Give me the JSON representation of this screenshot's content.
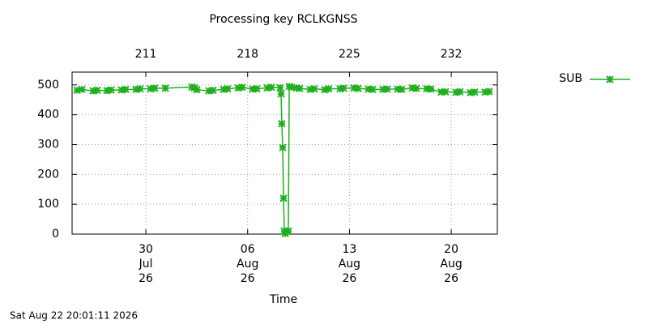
{
  "chart_data": {
    "type": "line",
    "title": "Processing key RCLKGNSS",
    "x_label": "Time",
    "footer": "Sat Aug 22 20:01:11 2026",
    "xlim": [
      205.93,
      235.17
    ],
    "ylim": [
      0,
      543
    ],
    "yticks": [
      0,
      100,
      200,
      300,
      400,
      500
    ],
    "xticks": [
      {
        "value": 211,
        "label": [
          "30",
          "Jul",
          "26"
        ]
      },
      {
        "value": 218,
        "label": [
          "06",
          "Aug",
          "26"
        ]
      },
      {
        "value": 225,
        "label": [
          "13",
          "Aug",
          "26"
        ]
      },
      {
        "value": 232,
        "label": [
          "20",
          "Aug",
          "26"
        ]
      }
    ],
    "x2ticks": [
      211,
      218,
      225,
      232
    ],
    "grid": true,
    "legend": "outside-right",
    "series": [
      {
        "name": "SUB",
        "color": "#1fb01f",
        "x": [
          206.27,
          206.6,
          207.38,
          207.66,
          208.33,
          208.61,
          209.33,
          209.61,
          210.33,
          210.61,
          211.33,
          211.61,
          212.34,
          214.17,
          214.34,
          214.51,
          215.34,
          215.62,
          216.35,
          216.62,
          217.35,
          217.63,
          218.35,
          218.63,
          219.35,
          219.63,
          220.24,
          220.3,
          220.35,
          220.41,
          220.47,
          220.52,
          220.58,
          220.74,
          220.8,
          220.86,
          221.02,
          221.36,
          221.58,
          222.3,
          222.58,
          223.31,
          223.58,
          224.36,
          224.59,
          225.31,
          225.59,
          226.31,
          226.59,
          227.31,
          227.59,
          228.32,
          228.59,
          229.32,
          229.6,
          230.32,
          230.6,
          231.32,
          231.6,
          232.33,
          232.6,
          233.33,
          233.61,
          234.33,
          234.61
        ],
        "values": [
          482,
          485,
          480,
          482,
          481,
          483,
          483,
          485,
          485,
          487,
          487,
          489,
          489,
          493,
          490,
          484,
          480,
          482,
          485,
          487,
          490,
          492,
          486,
          487,
          490,
          492,
          491,
          470,
          370,
          290,
          120,
          10,
          2,
          8,
          10,
          495,
          492,
          490,
          488,
          485,
          487,
          484,
          487,
          487,
          489,
          490,
          488,
          486,
          485,
          485,
          486,
          486,
          485,
          490,
          488,
          487,
          486,
          476,
          477,
          475,
          477,
          474,
          476,
          476,
          478
        ]
      }
    ]
  }
}
